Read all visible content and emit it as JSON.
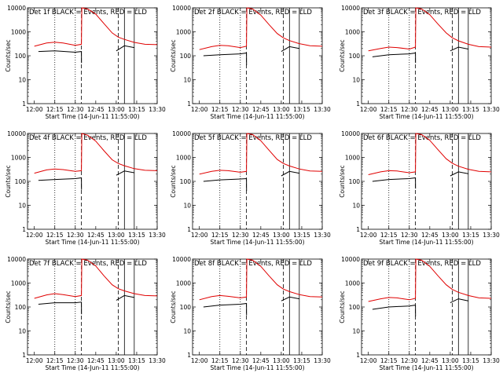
{
  "page": {
    "ytitle": "Counts/sec",
    "xtitle": "Start Time (14-Jun-11 11:55:00)",
    "title_suffix": "BLACK = Events, RED = LLD"
  },
  "colors": {
    "events": "#000000",
    "lld": "#e00000",
    "axes": "#000000"
  },
  "chart_data": [
    {
      "type": "line",
      "detector": "Det 1f",
      "title": "Det 1f BLACK = Events, RED = LLD",
      "xlabel": "Start Time (14-Jun-11 11:55:00)",
      "ylabel": "Counts/sec",
      "xlim": [
        11.9167,
        13.5
      ],
      "ylim": [
        1,
        10000
      ],
      "yscale": "log",
      "xticks": [
        "12:00",
        "12:15",
        "12:30",
        "12:45",
        "13:00",
        "13:15",
        "13:30"
      ],
      "yticks": [
        "1",
        "10",
        "100",
        "1000",
        "10000"
      ],
      "vlines": {
        "dotted": [
          12.25,
          12.5
        ],
        "dashed": [
          12.575,
          13.025
        ],
        "solid": [
          13.1,
          13.22
        ]
      },
      "series": [
        {
          "name": "Events",
          "x": [
            12.05,
            12.25,
            12.5,
            12.575,
            12.576,
            12.7,
            12.95,
            13.0,
            13.1,
            13.22,
            13.3
          ],
          "y": [
            150,
            160,
            140,
            150,
            50,
            null,
            null,
            160,
            260,
            220,
            null
          ]
        },
        {
          "name": "LLD",
          "x": [
            12.0,
            12.15,
            12.25,
            12.35,
            12.5,
            12.575,
            12.58,
            12.65,
            12.75,
            12.85,
            12.95,
            13.025,
            13.1,
            13.22,
            13.35,
            13.5
          ],
          "y": [
            250,
            340,
            370,
            340,
            270,
            300,
            10000,
            9000,
            5500,
            2200,
            900,
            600,
            480,
            360,
            300,
            290
          ]
        }
      ]
    },
    {
      "type": "line",
      "detector": "Det 2f",
      "title": "Det 2f BLACK = Events, RED = LLD",
      "xlabel": "Start Time (14-Jun-11 11:55:00)",
      "ylabel": "Counts/sec",
      "xlim": [
        11.9167,
        13.5
      ],
      "ylim": [
        1,
        10000
      ],
      "yscale": "log",
      "xticks": [
        "12:00",
        "12:15",
        "12:30",
        "12:45",
        "13:00",
        "13:15",
        "13:30"
      ],
      "yticks": [
        "1",
        "10",
        "100",
        "1000",
        "10000"
      ],
      "vlines": {
        "dotted": [
          12.25,
          12.5
        ],
        "dashed": [
          12.575,
          13.025
        ],
        "solid": [
          13.1,
          13.22
        ]
      },
      "series": [
        {
          "name": "Events",
          "x": [
            12.05,
            12.25,
            12.5,
            12.575,
            12.576,
            12.7,
            12.95,
            13.0,
            13.1,
            13.22,
            13.3
          ],
          "y": [
            100,
            110,
            120,
            130,
            40,
            null,
            null,
            150,
            240,
            200,
            null
          ]
        },
        {
          "name": "LLD",
          "x": [
            12.0,
            12.15,
            12.25,
            12.35,
            12.5,
            12.575,
            12.58,
            12.65,
            12.75,
            12.85,
            12.95,
            13.025,
            13.1,
            13.22,
            13.35,
            13.5
          ],
          "y": [
            180,
            240,
            270,
            260,
            220,
            250,
            10000,
            9000,
            5000,
            2000,
            850,
            560,
            430,
            320,
            260,
            250
          ]
        }
      ]
    },
    {
      "type": "line",
      "detector": "Det 3f",
      "title": "Det 3f BLACK = Events, RED = LLD",
      "xlabel": "Start Time (14-Jun-11 11:55:00)",
      "ylabel": "Counts/sec",
      "xlim": [
        11.9167,
        13.5
      ],
      "ylim": [
        1,
        10000
      ],
      "yscale": "log",
      "xticks": [
        "12:00",
        "12:15",
        "12:30",
        "12:45",
        "13:00",
        "13:15",
        "13:30"
      ],
      "yticks": [
        "1",
        "10",
        "100",
        "1000",
        "10000"
      ],
      "vlines": {
        "dotted": [
          12.25,
          12.5
        ],
        "dashed": [
          12.575,
          13.025
        ],
        "solid": [
          13.1,
          13.22
        ]
      },
      "series": [
        {
          "name": "Events",
          "x": [
            12.05,
            12.25,
            12.5,
            12.575,
            12.576,
            12.7,
            12.95,
            13.0,
            13.1,
            13.22,
            13.3
          ],
          "y": [
            90,
            110,
            120,
            130,
            50,
            null,
            null,
            160,
            230,
            190,
            null
          ]
        },
        {
          "name": "LLD",
          "x": [
            12.0,
            12.15,
            12.25,
            12.35,
            12.5,
            12.575,
            12.58,
            12.65,
            12.75,
            12.85,
            12.95,
            13.025,
            13.1,
            13.22,
            13.35,
            13.5
          ],
          "y": [
            160,
            200,
            230,
            220,
            190,
            230,
            10000,
            9000,
            5200,
            2100,
            900,
            560,
            420,
            300,
            240,
            230
          ]
        }
      ]
    },
    {
      "type": "line",
      "detector": "Det 4f",
      "title": "Det 4f BLACK = Events, RED = LLD",
      "xlabel": "Start Time (14-Jun-11 11:55:00)",
      "ylabel": "Counts/sec",
      "xlim": [
        11.9167,
        13.5
      ],
      "ylim": [
        1,
        10000
      ],
      "yscale": "log",
      "xticks": [
        "12:00",
        "12:15",
        "12:30",
        "12:45",
        "13:00",
        "13:15",
        "13:30"
      ],
      "yticks": [
        "1",
        "10",
        "100",
        "1000",
        "10000"
      ],
      "vlines": {
        "dotted": [
          12.25,
          12.5
        ],
        "dashed": [
          12.575,
          13.025
        ],
        "solid": [
          13.1,
          13.22
        ]
      },
      "series": [
        {
          "name": "Events",
          "x": [
            12.05,
            12.25,
            12.5,
            12.575,
            12.576,
            12.7,
            12.95,
            13.0,
            13.1,
            13.22,
            13.3
          ],
          "y": [
            110,
            120,
            130,
            140,
            45,
            null,
            null,
            180,
            270,
            230,
            null
          ]
        },
        {
          "name": "LLD",
          "x": [
            12.0,
            12.15,
            12.25,
            12.35,
            12.5,
            12.575,
            12.58,
            12.65,
            12.75,
            12.85,
            12.95,
            13.025,
            13.1,
            13.22,
            13.35,
            13.5
          ],
          "y": [
            220,
            300,
            330,
            310,
            260,
            280,
            10000,
            8500,
            4800,
            1900,
            800,
            560,
            450,
            340,
            290,
            280
          ]
        }
      ]
    },
    {
      "type": "line",
      "detector": "Det 5f",
      "title": "Det 5f BLACK = Events, RED = LLD",
      "xlabel": "Start Time (14-Jun-11 11:55:00)",
      "ylabel": "Counts/sec",
      "xlim": [
        11.9167,
        13.5
      ],
      "ylim": [
        1,
        10000
      ],
      "yscale": "log",
      "xticks": [
        "12:00",
        "12:15",
        "12:30",
        "12:45",
        "13:00",
        "13:15",
        "13:30"
      ],
      "yticks": [
        "1",
        "10",
        "100",
        "1000",
        "10000"
      ],
      "vlines": {
        "dotted": [
          12.25,
          12.5
        ],
        "dashed": [
          12.575,
          13.025
        ],
        "solid": [
          13.1,
          13.22
        ]
      },
      "series": [
        {
          "name": "Events",
          "x": [
            12.05,
            12.25,
            12.5,
            12.575,
            12.576,
            12.7,
            12.95,
            13.0,
            13.1,
            13.22,
            13.3
          ],
          "y": [
            100,
            115,
            125,
            130,
            40,
            null,
            null,
            170,
            260,
            220,
            null
          ]
        },
        {
          "name": "LLD",
          "x": [
            12.0,
            12.15,
            12.25,
            12.35,
            12.5,
            12.575,
            12.58,
            12.65,
            12.75,
            12.85,
            12.95,
            13.025,
            13.1,
            13.22,
            13.35,
            13.5
          ],
          "y": [
            200,
            260,
            290,
            280,
            240,
            260,
            10000,
            9000,
            5000,
            2000,
            820,
            560,
            440,
            330,
            270,
            260
          ]
        }
      ]
    },
    {
      "type": "line",
      "detector": "Det 6f",
      "title": "Det 6f BLACK = Events, RED = LLD",
      "xlabel": "Start Time (14-Jun-11 11:55:00)",
      "ylabel": "Counts/sec",
      "xlim": [
        11.9167,
        13.5
      ],
      "ylim": [
        1,
        10000
      ],
      "yscale": "log",
      "xticks": [
        "12:00",
        "12:15",
        "12:30",
        "12:45",
        "13:00",
        "13:15",
        "13:30"
      ],
      "yticks": [
        "1",
        "10",
        "100",
        "1000",
        "10000"
      ],
      "vlines": {
        "dotted": [
          12.25,
          12.5
        ],
        "dashed": [
          12.575,
          13.025
        ],
        "solid": [
          13.1,
          13.22
        ]
      },
      "series": [
        {
          "name": "Events",
          "x": [
            12.05,
            12.25,
            12.5,
            12.575,
            12.576,
            12.7,
            12.95,
            13.0,
            13.1,
            13.22,
            13.3
          ],
          "y": [
            100,
            120,
            130,
            140,
            50,
            null,
            null,
            170,
            250,
            210,
            null
          ]
        },
        {
          "name": "LLD",
          "x": [
            12.0,
            12.15,
            12.25,
            12.35,
            12.5,
            12.575,
            12.58,
            12.65,
            12.75,
            12.85,
            12.95,
            13.025,
            13.1,
            13.22,
            13.35,
            13.5
          ],
          "y": [
            190,
            250,
            280,
            270,
            230,
            250,
            10000,
            9000,
            5200,
            2100,
            880,
            570,
            430,
            320,
            260,
            250
          ]
        }
      ]
    },
    {
      "type": "line",
      "detector": "Det 7f",
      "title": "Det 7f BLACK = Events, RED = LLD",
      "xlabel": "Start Time (14-Jun-11 11:55:00)",
      "ylabel": "Counts/sec",
      "xlim": [
        11.9167,
        13.5
      ],
      "ylim": [
        1,
        10000
      ],
      "yscale": "log",
      "xticks": [
        "12:00",
        "12:15",
        "12:30",
        "12:45",
        "13:00",
        "13:15",
        "13:30"
      ],
      "yticks": [
        "1",
        "10",
        "100",
        "1000",
        "10000"
      ],
      "vlines": {
        "dotted": [
          12.25,
          12.5
        ],
        "dashed": [
          12.575,
          13.025
        ],
        "solid": [
          13.1,
          13.22
        ]
      },
      "series": [
        {
          "name": "Events",
          "x": [
            12.05,
            12.25,
            12.5,
            12.575,
            12.576,
            12.7,
            12.95,
            13.0,
            13.1,
            13.22,
            13.3
          ],
          "y": [
            130,
            150,
            150,
            160,
            50,
            null,
            null,
            190,
            300,
            250,
            null
          ]
        },
        {
          "name": "LLD",
          "x": [
            12.0,
            12.15,
            12.25,
            12.35,
            12.5,
            12.575,
            12.58,
            12.65,
            12.75,
            12.85,
            12.95,
            13.025,
            13.1,
            13.22,
            13.35,
            13.5
          ],
          "y": [
            230,
            320,
            360,
            330,
            270,
            300,
            10000,
            9000,
            5200,
            2000,
            850,
            580,
            470,
            360,
            300,
            290
          ]
        }
      ]
    },
    {
      "type": "line",
      "detector": "Det 8f",
      "title": "Det 8f BLACK = Events, RED = LLD",
      "xlabel": "Start Time (14-Jun-11 11:55:00)",
      "ylabel": "Counts/sec",
      "xlim": [
        11.9167,
        13.5
      ],
      "ylim": [
        1,
        10000
      ],
      "yscale": "log",
      "xticks": [
        "12:00",
        "12:15",
        "12:30",
        "12:45",
        "13:00",
        "13:15",
        "13:30"
      ],
      "yticks": [
        "1",
        "10",
        "100",
        "1000",
        "10000"
      ],
      "vlines": {
        "dotted": [
          12.25,
          12.5
        ],
        "dashed": [
          12.575,
          13.025
        ],
        "solid": [
          13.1,
          13.22
        ]
      },
      "series": [
        {
          "name": "Events",
          "x": [
            12.05,
            12.25,
            12.5,
            12.575,
            12.576,
            12.7,
            12.95,
            13.0,
            13.1,
            13.22,
            13.3
          ],
          "y": [
            100,
            120,
            130,
            140,
            45,
            null,
            null,
            180,
            260,
            220,
            null
          ]
        },
        {
          "name": "LLD",
          "x": [
            12.0,
            12.15,
            12.25,
            12.35,
            12.5,
            12.575,
            12.58,
            12.65,
            12.75,
            12.85,
            12.95,
            13.025,
            13.1,
            13.22,
            13.35,
            13.5
          ],
          "y": [
            200,
            270,
            300,
            280,
            240,
            260,
            10000,
            9000,
            5000,
            2000,
            850,
            560,
            440,
            330,
            270,
            260
          ]
        }
      ]
    },
    {
      "type": "line",
      "detector": "Det 9f",
      "title": "Det 9f BLACK = Events, RED = LLD",
      "xlabel": "Start Time (14-Jun-11 11:55:00)",
      "ylabel": "Counts/sec",
      "xlim": [
        11.9167,
        13.5
      ],
      "ylim": [
        1,
        10000
      ],
      "yscale": "log",
      "xticks": [
        "12:00",
        "12:15",
        "12:30",
        "12:45",
        "13:00",
        "13:15",
        "13:30"
      ],
      "yticks": [
        "1",
        "10",
        "100",
        "1000",
        "10000"
      ],
      "vlines": {
        "dotted": [
          12.25,
          12.5
        ],
        "dashed": [
          12.575,
          13.025
        ],
        "solid": [
          13.1,
          13.22
        ]
      },
      "series": [
        {
          "name": "Events",
          "x": [
            12.05,
            12.25,
            12.5,
            12.575,
            12.576,
            12.7,
            12.95,
            13.0,
            13.1,
            13.22,
            13.3
          ],
          "y": [
            80,
            100,
            110,
            120,
            40,
            null,
            null,
            150,
            220,
            180,
            null
          ]
        },
        {
          "name": "LLD",
          "x": [
            12.0,
            12.15,
            12.25,
            12.35,
            12.5,
            12.575,
            12.58,
            12.65,
            12.75,
            12.85,
            12.95,
            13.025,
            13.1,
            13.22,
            13.35,
            13.5
          ],
          "y": [
            170,
            220,
            250,
            240,
            200,
            230,
            10000,
            9000,
            5000,
            2000,
            850,
            540,
            410,
            300,
            240,
            230
          ]
        }
      ]
    }
  ]
}
